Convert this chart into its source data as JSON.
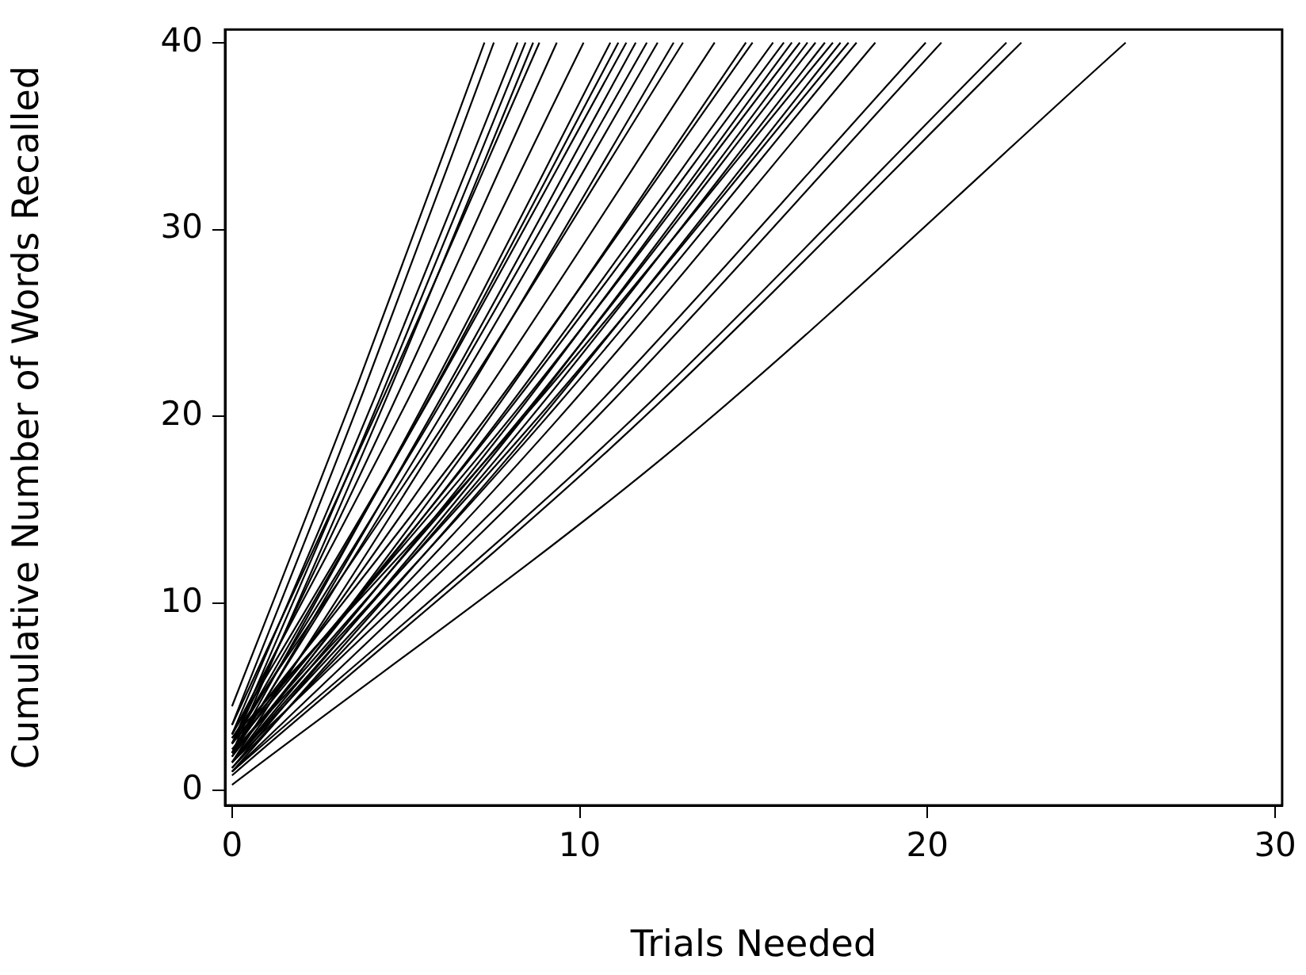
{
  "chart_data": {
    "type": "line",
    "xlabel": "Trials Needed",
    "ylabel": "Cumulative Number of Words Recalled",
    "xlim": [
      -0.2,
      30.2
    ],
    "ylim": [
      -0.8,
      40.7
    ],
    "xticks": [
      0,
      10,
      20,
      30
    ],
    "yticks": [
      0,
      10,
      20,
      30,
      40
    ],
    "marker": "none",
    "line_style": "solid",
    "series": [
      {
        "color": "#000000",
        "x": [
          0,
          3.63,
          7.26
        ],
        "values": [
          4.5,
          21.8,
          40
        ]
      },
      {
        "color": "#000000",
        "x": [
          0,
          3.77,
          7.53
        ],
        "values": [
          3.5,
          21.3,
          40
        ]
      },
      {
        "color": "#000000",
        "x": [
          0,
          4.1,
          8.21
        ],
        "values": [
          3.0,
          21.0,
          40
        ]
      },
      {
        "color": "#000000",
        "x": [
          0,
          4.22,
          8.44
        ],
        "values": [
          2.5,
          20.8,
          40
        ]
      },
      {
        "color": "#000000",
        "x": [
          0,
          4.33,
          8.66
        ],
        "values": [
          2.0,
          20.5,
          40
        ]
      },
      {
        "color": "#000000",
        "x": [
          0,
          4.42,
          8.84
        ],
        "values": [
          3.5,
          21.3,
          40
        ]
      },
      {
        "color": "#000000",
        "x": [
          0,
          4.67,
          9.34
        ],
        "values": [
          2.5,
          20.8,
          40
        ]
      },
      {
        "color": "#000000",
        "x": [
          0,
          5.06,
          10.11
        ],
        "values": [
          3.0,
          20.9,
          40
        ]
      },
      {
        "color": "#000000",
        "x": [
          0,
          5.44,
          10.88
        ],
        "values": [
          2.0,
          20.4,
          40
        ]
      },
      {
        "color": "#000000",
        "x": [
          0,
          5.56,
          11.11
        ],
        "values": [
          2.5,
          20.6,
          40
        ]
      },
      {
        "color": "#000000",
        "x": [
          0,
          5.67,
          11.34
        ],
        "values": [
          3.0,
          20.9,
          40
        ]
      },
      {
        "color": "#000000",
        "x": [
          0,
          5.8,
          11.61
        ],
        "values": [
          1.8,
          20.3,
          40
        ]
      },
      {
        "color": "#000000",
        "x": [
          0,
          5.97,
          11.93
        ],
        "values": [
          2.5,
          20.6,
          40
        ]
      },
      {
        "color": "#000000",
        "x": [
          0,
          6.12,
          12.24
        ],
        "values": [
          2.0,
          20.4,
          40
        ]
      },
      {
        "color": "#000000",
        "x": [
          0,
          6.35,
          12.7
        ],
        "values": [
          1.5,
          20.0,
          40
        ]
      },
      {
        "color": "#000000",
        "x": [
          0,
          6.49,
          12.97
        ],
        "values": [
          2.8,
          20.7,
          40
        ]
      },
      {
        "color": "#000000",
        "x": [
          0,
          6.94,
          13.88
        ],
        "values": [
          2.0,
          20.3,
          40
        ]
      },
      {
        "color": "#000000",
        "x": [
          0,
          7.39,
          14.78
        ],
        "values": [
          1.5,
          19.9,
          40
        ]
      },
      {
        "color": "#000000",
        "x": [
          0,
          7.49,
          14.97
        ],
        "values": [
          2.5,
          20.4,
          40
        ]
      },
      {
        "color": "#000000",
        "x": [
          0,
          7.78,
          15.56
        ],
        "values": [
          1.8,
          20.1,
          40
        ]
      },
      {
        "color": "#000000",
        "x": [
          0,
          7.94,
          15.87
        ],
        "values": [
          2.2,
          20.3,
          40
        ]
      },
      {
        "color": "#000000",
        "x": [
          0,
          8.05,
          16.1
        ],
        "values": [
          1.5,
          19.8,
          40
        ]
      },
      {
        "color": "#000000",
        "x": [
          0,
          8.17,
          16.33
        ],
        "values": [
          2.5,
          20.3,
          40
        ]
      },
      {
        "color": "#000000",
        "x": [
          0,
          8.28,
          16.55
        ],
        "values": [
          1.2,
          19.7,
          40
        ]
      },
      {
        "color": "#000000",
        "x": [
          0,
          8.39,
          16.78
        ],
        "values": [
          2.0,
          20.1,
          40
        ]
      },
      {
        "color": "#000000",
        "x": [
          0,
          8.53,
          17.05
        ],
        "values": [
          1.5,
          19.8,
          40
        ]
      },
      {
        "color": "#000000",
        "x": [
          0,
          8.64,
          17.28
        ],
        "values": [
          2.8,
          20.5,
          40
        ]
      },
      {
        "color": "#000000",
        "x": [
          0,
          8.75,
          17.5
        ],
        "values": [
          1.0,
          19.6,
          40
        ]
      },
      {
        "color": "#000000",
        "x": [
          0,
          8.87,
          17.73
        ],
        "values": [
          2.0,
          20.1,
          40
        ]
      },
      {
        "color": "#000000",
        "x": [
          0,
          8.98,
          17.96
        ],
        "values": [
          1.5,
          19.8,
          40
        ]
      },
      {
        "color": "#000000",
        "x": [
          0,
          9.25,
          18.5
        ],
        "values": [
          1.2,
          19.6,
          40
        ]
      },
      {
        "color": "#000000",
        "x": [
          0,
          9.98,
          19.95
        ],
        "values": [
          1.5,
          19.6,
          40
        ]
      },
      {
        "color": "#000000",
        "x": [
          0,
          10.2,
          20.4
        ],
        "values": [
          1.0,
          19.4,
          40
        ]
      },
      {
        "color": "#000000",
        "x": [
          0,
          11.14,
          22.27
        ],
        "values": [
          1.0,
          19.2,
          40
        ]
      },
      {
        "color": "#000000",
        "x": [
          0,
          11.35,
          22.7
        ],
        "values": [
          0.8,
          19.1,
          40
        ]
      },
      {
        "color": "#000000",
        "x": [
          0,
          12.85,
          25.7
        ],
        "values": [
          0.3,
          18.5,
          40
        ]
      }
    ]
  }
}
